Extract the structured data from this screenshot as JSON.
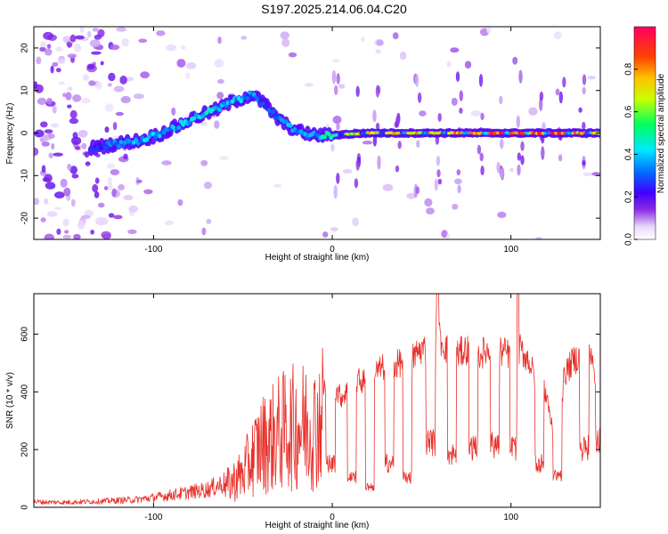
{
  "title": "S197.2025.214.06.04.C20",
  "chart_data": [
    {
      "type": "heatmap",
      "name": "spectrogram",
      "xlabel": "Height of straight line (km)",
      "ylabel": "Frequency (Hz)",
      "xlim": [
        -167,
        150
      ],
      "ylim": [
        -25,
        25
      ],
      "xticks": [
        -100,
        0,
        100
      ],
      "yticks": [
        -20,
        -10,
        0,
        10,
        20
      ],
      "colorbar": {
        "label": "Normalized spectral amplitude",
        "ticks": [
          0.0,
          0.2,
          0.4,
          0.6,
          0.8
        ],
        "range": [
          0,
          1
        ],
        "colors": [
          "#ffffff",
          "#d8b8f8",
          "#8a2be2",
          "#4000ff",
          "#0070ff",
          "#00e8ff",
          "#00ff60",
          "#c8ff00",
          "#ffc000",
          "#ff4000",
          "#ff0060"
        ]
      },
      "ridge": [
        {
          "x": -135,
          "y": -3.5,
          "a": 0.25
        },
        {
          "x": -120,
          "y": -2.5,
          "a": 0.35
        },
        {
          "x": -105,
          "y": -1.5,
          "a": 0.4
        },
        {
          "x": -95,
          "y": 0,
          "a": 0.4
        },
        {
          "x": -85,
          "y": 2,
          "a": 0.4
        },
        {
          "x": -75,
          "y": 4,
          "a": 0.45
        },
        {
          "x": -65,
          "y": 5.5,
          "a": 0.45
        },
        {
          "x": -55,
          "y": 7.5,
          "a": 0.4
        },
        {
          "x": -45,
          "y": 9,
          "a": 0.35
        },
        {
          "x": -38,
          "y": 7,
          "a": 0.3
        },
        {
          "x": -30,
          "y": 3,
          "a": 0.35
        },
        {
          "x": -20,
          "y": 0.5,
          "a": 0.4
        },
        {
          "x": -10,
          "y": -0.5,
          "a": 0.35
        },
        {
          "x": 0,
          "y": -0.5,
          "a": 0.55
        },
        {
          "x": 20,
          "y": 0,
          "a": 0.75
        },
        {
          "x": 40,
          "y": 0,
          "a": 0.75
        },
        {
          "x": 60,
          "y": 0,
          "a": 0.8
        },
        {
          "x": 80,
          "y": 0,
          "a": 0.85
        },
        {
          "x": 100,
          "y": 0,
          "a": 0.9
        },
        {
          "x": 120,
          "y": 0,
          "a": 0.95
        },
        {
          "x": 140,
          "y": 0,
          "a": 0.8
        }
      ]
    },
    {
      "type": "line",
      "name": "snr",
      "xlabel": "Height of straight line (km)",
      "ylabel": "SNR (10 * v/v)",
      "xlim": [
        -167,
        150
      ],
      "ylim": [
        0,
        740
      ],
      "xticks": [
        -100,
        0,
        100
      ],
      "yticks": [
        0,
        200,
        400,
        600
      ],
      "line_color": "#e8302a",
      "series": [
        {
          "x": [
            -167,
            -150,
            -130,
            -110,
            -100,
            -90,
            -80,
            -70,
            -60,
            -50,
            -45,
            -40,
            -35,
            -30,
            -25,
            -20,
            -15,
            -10,
            -5,
            0,
            5,
            10,
            15,
            20,
            25,
            30,
            35,
            40,
            45,
            50,
            55,
            60,
            65,
            70,
            75,
            80,
            85,
            90,
            95,
            100,
            105,
            110,
            115,
            120,
            125,
            130,
            135,
            140,
            145,
            150
          ],
          "y": [
            20,
            18,
            22,
            28,
            35,
            45,
            55,
            65,
            90,
            150,
            220,
            280,
            300,
            330,
            350,
            360,
            370,
            360,
            420,
            430,
            390,
            420,
            450,
            440,
            480,
            500,
            500,
            520,
            530,
            560,
            560,
            600,
            550,
            540,
            560,
            530,
            550,
            560,
            550,
            540,
            560,
            520,
            430,
            400,
            200,
            470,
            520,
            540,
            560,
            220
          ]
        }
      ],
      "dips": [
        {
          "x": -1,
          "y": 150
        },
        {
          "x": 11,
          "y": 100
        },
        {
          "x": 21,
          "y": 70
        },
        {
          "x": 32,
          "y": 150
        },
        {
          "x": 42,
          "y": 100
        },
        {
          "x": 55,
          "y": 220
        },
        {
          "x": 67,
          "y": 180
        },
        {
          "x": 79,
          "y": 200
        },
        {
          "x": 91,
          "y": 210
        },
        {
          "x": 102,
          "y": 200
        },
        {
          "x": 116,
          "y": 150
        },
        {
          "x": 126,
          "y": 110
        },
        {
          "x": 141,
          "y": 200
        },
        {
          "x": 150,
          "y": 220
        }
      ],
      "spikes": [
        {
          "x": 59,
          "y": 740
        },
        {
          "x": 104,
          "y": 740
        }
      ]
    }
  ]
}
